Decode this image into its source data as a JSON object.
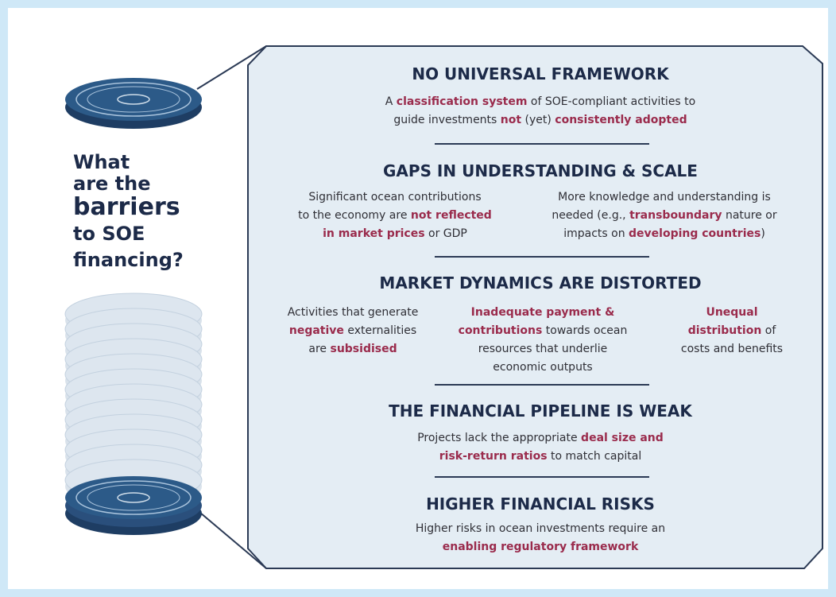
{
  "question": [
    {
      "t": "What"
    },
    {
      "t": "are the"
    },
    {
      "t": "barriers",
      "hl": true
    },
    {
      "t": "to SOE"
    },
    {
      "t": "financing?"
    }
  ],
  "sections": [
    {
      "title": "NO UNIVERSAL FRAMEWORK",
      "columns": [
        [
          [
            {
              "t": "A "
            },
            {
              "t": "classification system",
              "hl": true
            },
            {
              "t": " of SOE-compliant activities to"
            }
          ],
          [
            {
              "t": "guide investments "
            },
            {
              "t": "not",
              "hl": true
            },
            {
              "t": " (yet) "
            },
            {
              "t": "consistently adopted",
              "hl": true
            }
          ]
        ]
      ]
    },
    {
      "title": "GAPS IN UNDERSTANDING & SCALE",
      "columns": [
        [
          [
            {
              "t": "Significant ocean contributions"
            }
          ],
          [
            {
              "t": "to the economy are "
            },
            {
              "t": "not reflected",
              "hl": true
            }
          ],
          [
            {
              "t": "in market prices",
              "hl": true
            },
            {
              "t": " or GDP"
            }
          ]
        ],
        [
          [
            {
              "t": "More knowledge and understanding is"
            }
          ],
          [
            {
              "t": "needed (e.g., "
            },
            {
              "t": "transboundary",
              "hl": true
            },
            {
              "t": " nature or"
            }
          ],
          [
            {
              "t": "impacts on "
            },
            {
              "t": "developing countries",
              "hl": true
            },
            {
              "t": ")"
            }
          ]
        ]
      ]
    },
    {
      "title": "MARKET DYNAMICS ARE DISTORTED",
      "columns": [
        [
          [
            {
              "t": "Activities that generate"
            }
          ],
          [
            {
              "t": "negative",
              "hl": true
            },
            {
              "t": " externalities"
            }
          ],
          [
            {
              "t": "are "
            },
            {
              "t": "subsidised",
              "hl": true
            }
          ]
        ],
        [
          [
            {
              "t": "Inadequate payment &",
              "hl": true
            }
          ],
          [
            {
              "t": "contributions",
              "hl": true
            },
            {
              "t": " towards ocean"
            }
          ],
          [
            {
              "t": "resources that underlie"
            }
          ],
          [
            {
              "t": "economic outputs"
            }
          ]
        ],
        [
          [
            {
              "t": "Unequal",
              "hl": true
            }
          ],
          [
            {
              "t": "distribution",
              "hl": true
            },
            {
              "t": " of"
            }
          ],
          [
            {
              "t": "costs and benefits"
            }
          ]
        ]
      ]
    },
    {
      "title": "THE FINANCIAL PIPELINE IS WEAK",
      "columns": [
        [
          [
            {
              "t": "Projects lack the appropriate "
            },
            {
              "t": "deal size and",
              "hl": true
            }
          ],
          [
            {
              "t": "risk-return ratios",
              "hl": true
            },
            {
              "t": " to match capital"
            }
          ]
        ]
      ]
    },
    {
      "title": "HIGHER FINANCIAL RISKS",
      "columns": [
        [
          [
            {
              "t": "Higher risks in ocean investments require an"
            }
          ],
          [
            {
              "t": "enabling regulatory framework",
              "hl": true
            }
          ]
        ]
      ]
    }
  ]
}
